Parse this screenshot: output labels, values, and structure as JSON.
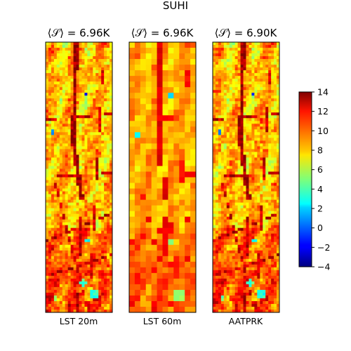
{
  "chart_data": {
    "type": "heatmap",
    "title": "SUHI",
    "panels": [
      {
        "title": "⟨𝒮⟩ = 6.96K",
        "xlabel": "LST 20m"
      },
      {
        "title": "⟨𝒮⟩ = 6.96K",
        "xlabel": "LST 60m"
      },
      {
        "title": "⟨𝒮⟩ = 6.90K",
        "xlabel": "AATPRK"
      }
    ],
    "colorbar": {
      "colormap": "jet",
      "range": [
        -4,
        14
      ],
      "ticks": [
        "14",
        "12",
        "10",
        "8",
        "6",
        "4",
        "2",
        "0",
        "−2",
        "−4"
      ]
    },
    "grid": false
  }
}
